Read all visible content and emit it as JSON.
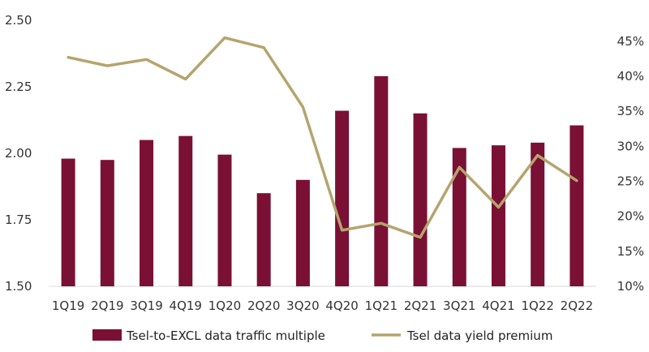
{
  "chart_data": {
    "type": "bar",
    "categories": [
      "1Q19",
      "2Q19",
      "3Q19",
      "4Q19",
      "1Q20",
      "2Q20",
      "3Q20",
      "4Q20",
      "1Q21",
      "2Q21",
      "3Q21",
      "4Q21",
      "1Q22",
      "2Q22"
    ],
    "series": [
      {
        "name": "Tsel-to-EXCL data traffic multiple",
        "type": "bar",
        "axis": "left",
        "color": "#7a1034",
        "values": [
          1.98,
          1.975,
          2.05,
          2.065,
          1.995,
          1.85,
          1.9,
          2.16,
          2.29,
          2.15,
          2.02,
          2.03,
          2.04,
          2.105
        ]
      },
      {
        "name": "Tsel data yield premium",
        "type": "line",
        "axis": "right",
        "color": "#b5a46e",
        "values": [
          42.7,
          41.5,
          42.4,
          39.6,
          45.5,
          44.1,
          35.6,
          18.0,
          19.0,
          17.0,
          27.0,
          21.3,
          28.7,
          25.1
        ]
      }
    ],
    "y_left": {
      "min": 1.5,
      "max": 2.5,
      "ticks": [
        "1.50",
        "1.75",
        "2.00",
        "2.25",
        "2.50"
      ]
    },
    "y_right": {
      "min": 10,
      "max": 48,
      "ticks": [
        "10%",
        "15%",
        "20%",
        "25%",
        "30%",
        "35%",
        "40%",
        "45%"
      ]
    },
    "legend": {
      "position": "bottom"
    },
    "grid": false
  }
}
